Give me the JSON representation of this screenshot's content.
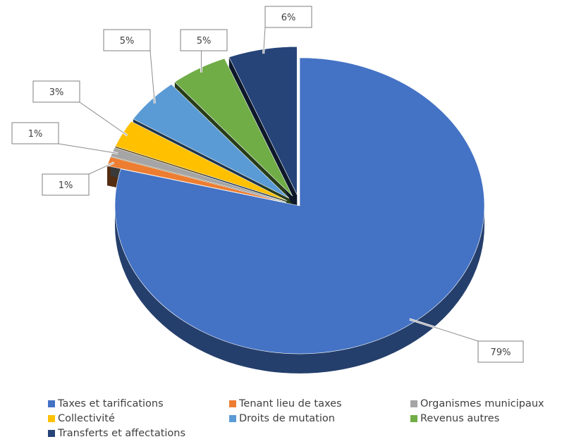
{
  "chart_data": {
    "type": "pie",
    "title": "",
    "categories": [
      "Taxes et tarifications",
      "Tenant lieu de taxes",
      "Organismes municipaux",
      "Collectivité",
      "Droits de mutation",
      "Revenus autres",
      "Transferts et affectations"
    ],
    "values": [
      79,
      1,
      1,
      3,
      5,
      5,
      6
    ],
    "data_labels": [
      "79%",
      "1%",
      "1%",
      "3%",
      "5%",
      "5%",
      "6%"
    ],
    "colors": [
      "#4472C4",
      "#ED7D31",
      "#A5A5A5",
      "#FFC000",
      "#5B9BD5",
      "#70AD47",
      "#264478"
    ],
    "exploded": true,
    "three_d": true,
    "legend_position": "bottom"
  }
}
